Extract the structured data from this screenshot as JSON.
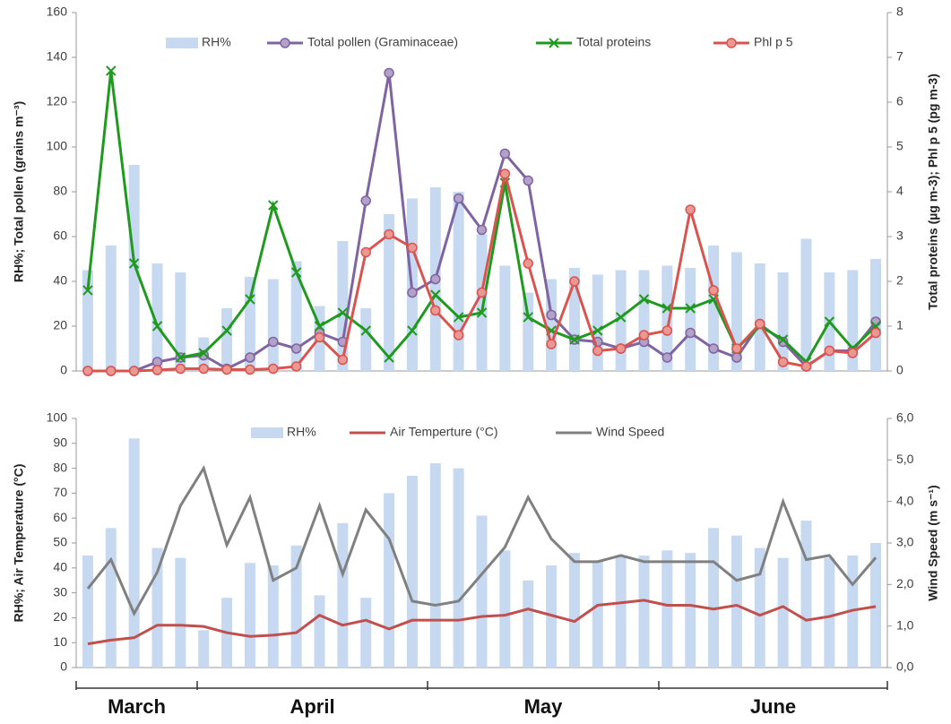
{
  "months": [
    "March",
    "April",
    "May",
    "June"
  ],
  "chart_data": [
    {
      "type": "combo",
      "ylabel": "RH%; Total pollen (grains m⁻³)",
      "y2label": "Total proteins (µg m-3); Phl p 5 (pg m-3)",
      "ylim": [
        0,
        160
      ],
      "yticks": [
        0,
        20,
        40,
        60,
        80,
        100,
        120,
        140,
        160
      ],
      "y2lim": [
        0,
        8
      ],
      "y2ticks": [
        0,
        1,
        2,
        3,
        4,
        5,
        6,
        7,
        8
      ],
      "series": [
        {
          "name": "RH%",
          "type": "bar",
          "color": "#c6d9f1",
          "values": [
            45,
            56,
            92,
            48,
            44,
            15,
            28,
            42,
            41,
            49,
            29,
            58,
            28,
            70,
            77,
            82,
            80,
            61,
            47,
            35,
            41,
            46,
            43,
            45,
            45,
            47,
            46,
            56,
            53,
            48,
            44,
            59,
            44,
            45,
            50
          ]
        },
        {
          "name": "Total pollen (Graminaceae)",
          "type": "line",
          "marker": "o",
          "color": "#8064a2",
          "markerFill": "#b3a2c7",
          "values": [
            0,
            0,
            0,
            4,
            6,
            7,
            1,
            6,
            13,
            10,
            17,
            13,
            76,
            133,
            35,
            41,
            77,
            63,
            97,
            85,
            25,
            14,
            13,
            10,
            13,
            6,
            17,
            10,
            6,
            21,
            13,
            2,
            9,
            9,
            22
          ]
        },
        {
          "name": "Total proteins",
          "type": "line",
          "marker": "x",
          "color": "#1f9a1f",
          "axis": "y2",
          "values": [
            1.8,
            6.7,
            2.4,
            1.0,
            0.3,
            0.4,
            0.9,
            1.6,
            3.7,
            2.2,
            1.0,
            1.3,
            0.9,
            0.3,
            0.9,
            1.7,
            1.2,
            1.3,
            4.2,
            1.2,
            0.9,
            0.7,
            0.9,
            1.2,
            1.6,
            1.4,
            1.4,
            1.6,
            0.5,
            1.0,
            0.7,
            0.2,
            1.1,
            0.5,
            1.0
          ]
        },
        {
          "name": "Phl p 5",
          "type": "line",
          "marker": "o",
          "color": "#d9544f",
          "markerFill": "#eb9893",
          "axis": "y2",
          "values": [
            0,
            0,
            0,
            0.02,
            0.05,
            0.05,
            0.03,
            0.03,
            0.05,
            0.1,
            0.75,
            0.25,
            2.65,
            3.05,
            2.75,
            1.35,
            0.8,
            1.75,
            4.4,
            2.4,
            0.6,
            2.0,
            0.45,
            0.5,
            0.8,
            0.9,
            3.6,
            1.8,
            0.5,
            1.05,
            0.2,
            0.1,
            0.45,
            0.4,
            0.85
          ]
        }
      ]
    },
    {
      "type": "combo",
      "ylabel": "RH%; Air Temperature (°C)",
      "y2label": "Wind Speed (m s⁻¹)",
      "ylim": [
        0,
        100
      ],
      "yticks": [
        0,
        10,
        20,
        30,
        40,
        50,
        60,
        70,
        80,
        90,
        100
      ],
      "y2lim": [
        0,
        6
      ],
      "y2ticks": [
        {
          "value": 0,
          "label": "0,0"
        },
        {
          "value": 1,
          "label": "1,0"
        },
        {
          "value": 2,
          "label": "2,0"
        },
        {
          "value": 3,
          "label": "3,0"
        },
        {
          "value": 4,
          "label": "4,0"
        },
        {
          "value": 5,
          "label": "5,0"
        },
        {
          "value": 6,
          "label": "6,0"
        }
      ],
      "series": [
        {
          "name": "RH%",
          "type": "bar",
          "color": "#c6d9f1",
          "values": [
            45,
            56,
            92,
            48,
            44,
            15,
            28,
            42,
            41,
            49,
            29,
            58,
            28,
            70,
            77,
            82,
            80,
            61,
            47,
            35,
            41,
            46,
            43,
            45,
            45,
            47,
            46,
            56,
            53,
            48,
            44,
            59,
            44,
            45,
            50
          ]
        },
        {
          "name": "Air Temperture (°C)",
          "type": "line",
          "color": "#c0504d",
          "values": [
            9.5,
            11,
            12,
            17,
            17,
            16.5,
            14,
            12.5,
            13,
            14,
            21,
            17,
            19,
            15.5,
            19,
            19,
            19,
            20.5,
            21,
            23.5,
            21,
            18.5,
            25,
            26,
            27,
            25,
            25,
            23.5,
            25,
            21,
            24.5,
            19,
            20.5,
            23,
            24.5
          ]
        },
        {
          "name": "Wind Speed",
          "type": "line",
          "color": "#808080",
          "axis": "y2",
          "values": [
            1.9,
            2.6,
            1.3,
            2.3,
            3.9,
            4.8,
            2.95,
            4.1,
            2.1,
            2.4,
            3.9,
            2.25,
            3.8,
            3.1,
            1.6,
            1.5,
            1.6,
            2.25,
            2.9,
            4.1,
            3.1,
            2.55,
            2.55,
            2.7,
            2.55,
            2.55,
            2.55,
            2.55,
            2.1,
            2.25,
            4.0,
            2.6,
            2.7,
            2.0,
            2.65
          ]
        }
      ]
    }
  ]
}
